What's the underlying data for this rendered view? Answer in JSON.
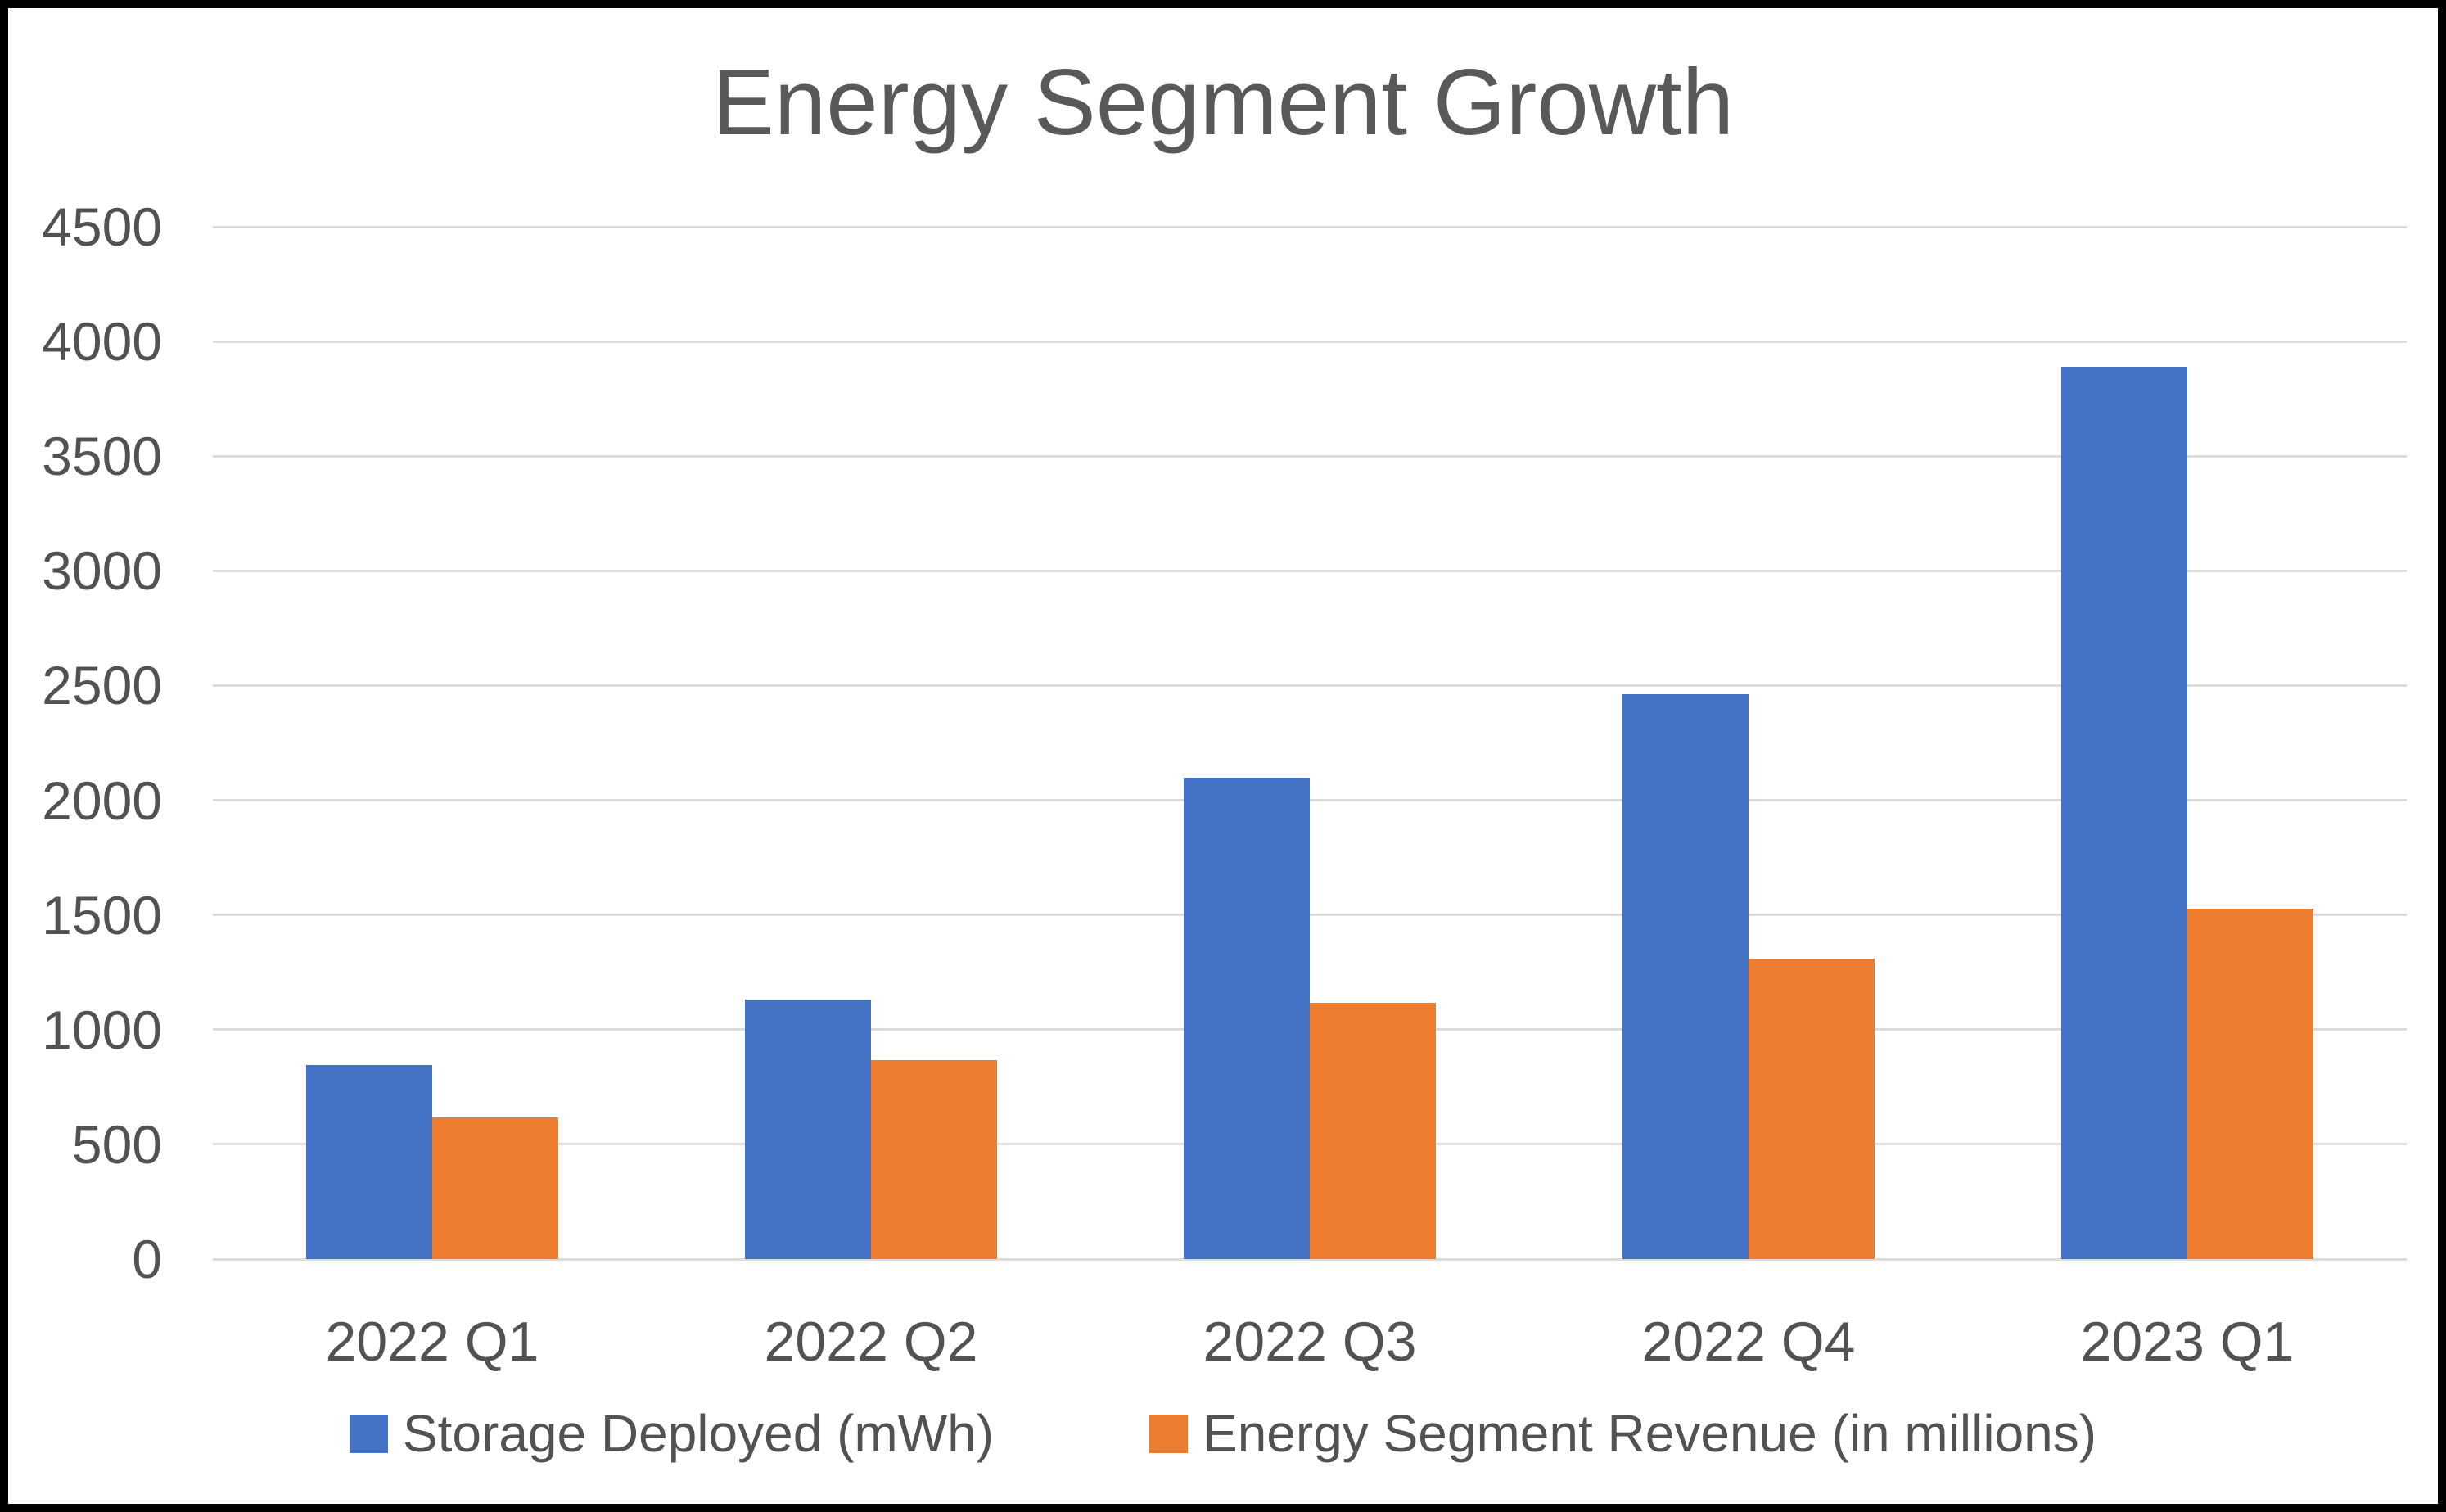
{
  "chart_data": {
    "type": "bar",
    "title": "Energy Segment Growth",
    "categories": [
      "2022 Q1",
      "2022 Q2",
      "2022 Q3",
      "2022 Q4",
      "2023 Q1"
    ],
    "series": [
      {
        "name": "Storage Deployed (mWh)",
        "color": "#4472C4",
        "values": [
          846,
          1133,
          2100,
          2462,
          3889
        ]
      },
      {
        "name": "Energy Segment Revenue (in millions)",
        "color": "#ED7D31",
        "values": [
          616,
          866,
          1117,
          1310,
          1529
        ]
      }
    ],
    "xlabel": "",
    "ylabel": "",
    "ylim": [
      0,
      4500
    ],
    "ytick_step": 500,
    "grid": "horizontal",
    "legend_position": "bottom"
  },
  "styles": {
    "title_color": "#595959",
    "tick_label_color": "#525252",
    "legend_text_color": "#525252",
    "gridline_color": "#DCDCDC",
    "background_color": "#FFFFFF",
    "frame_border_color": "#000000"
  }
}
